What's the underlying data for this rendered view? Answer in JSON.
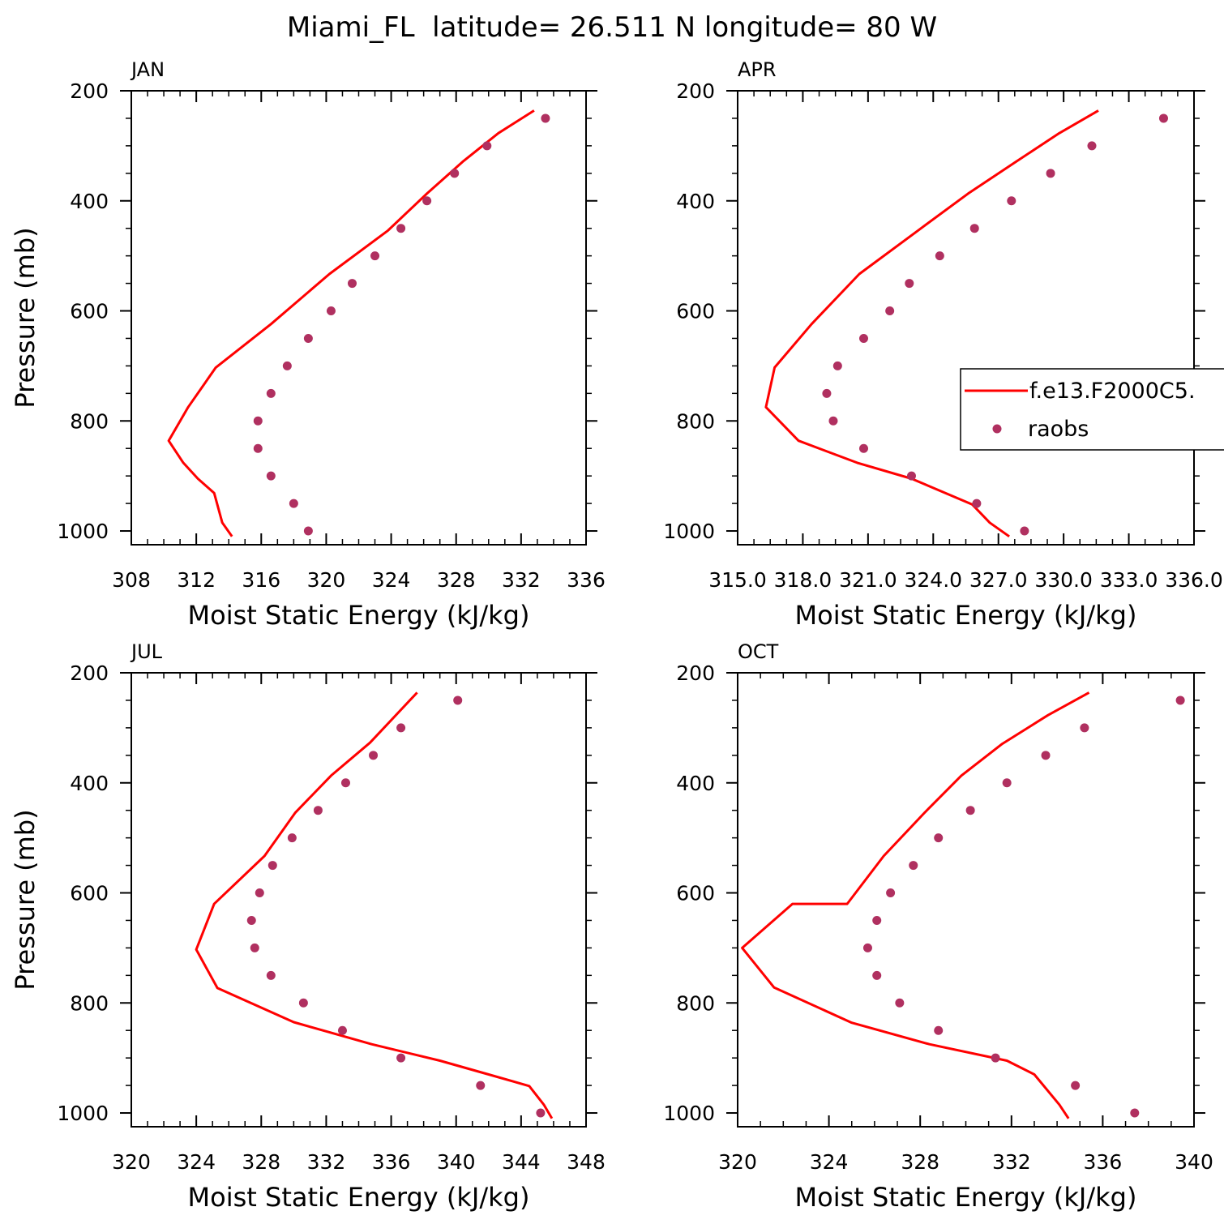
{
  "title": "Miami_FL  latitude= 26.511 N longitude= 80 W",
  "colors": {
    "model": "#ff0000",
    "obs": "#b03060"
  },
  "legend": {
    "model": "f.e13.F2000C5.",
    "obs": "raobs",
    "placement": "right side of APR panel"
  },
  "chart_data": [
    {
      "type": "line",
      "panel_label": "JAN",
      "xlabel": "Moist Static Energy (kJ/kg)",
      "ylabel": "Pressure (mb)",
      "xlim": [
        308,
        336
      ],
      "ylim": [
        1025,
        200
      ],
      "xticks": [
        "308",
        "312",
        "316",
        "320",
        "324",
        "328",
        "332",
        "336"
      ],
      "yticks": [
        "200",
        "400",
        "600",
        "800",
        "1000"
      ],
      "model": {
        "x": [
          332.8,
          330.6,
          328.4,
          326.2,
          323.8,
          320.2,
          316.6,
          313.2,
          311.5,
          310.3,
          311.2,
          312.1,
          313.1,
          313.6,
          314.2
        ],
        "p": [
          236,
          277,
          329,
          387,
          454,
          533,
          624,
          703,
          775,
          836,
          876,
          905,
          931,
          985,
          1010
        ]
      },
      "obs": {
        "x": [
          333.5,
          329.9,
          327.9,
          326.2,
          324.6,
          323.0,
          321.6,
          320.3,
          318.9,
          317.6,
          316.6,
          315.8,
          315.8,
          316.6,
          318.0,
          318.9
        ],
        "p": [
          250,
          300,
          350,
          400,
          450,
          500,
          550,
          600,
          650,
          700,
          750,
          800,
          850,
          900,
          950,
          1000
        ]
      }
    },
    {
      "type": "line",
      "panel_label": "APR",
      "xlabel": "Moist Static Energy (kJ/kg)",
      "ylabel": "",
      "xlim": [
        315,
        336
      ],
      "ylim": [
        1025,
        200
      ],
      "xticks": [
        "315.0",
        "318.0",
        "321.0",
        "324.0",
        "327.0",
        "330.0",
        "333.0",
        "336.0"
      ],
      "yticks": [
        "200",
        "400",
        "600",
        "800",
        "1000"
      ],
      "model": {
        "x": [
          331.6,
          329.8,
          327.8,
          325.6,
          323.3,
          320.6,
          318.4,
          316.7,
          316.3,
          317.8,
          320.5,
          323.0,
          325.8,
          326.6,
          327.5
        ],
        "p": [
          236,
          277,
          329,
          387,
          454,
          533,
          624,
          703,
          775,
          836,
          876,
          905,
          952,
          985,
          1010
        ]
      },
      "obs": {
        "x": [
          334.6,
          331.3,
          329.4,
          327.6,
          325.9,
          324.3,
          322.9,
          322.0,
          320.8,
          319.6,
          319.1,
          319.4,
          320.8,
          323.0,
          326.0,
          328.2
        ],
        "p": [
          250,
          300,
          350,
          400,
          450,
          500,
          550,
          600,
          650,
          700,
          750,
          800,
          850,
          900,
          950,
          1000
        ]
      }
    },
    {
      "type": "line",
      "panel_label": "JUL",
      "xlabel": "Moist Static Energy (kJ/kg)",
      "ylabel": "Pressure (mb)",
      "xlim": [
        320,
        348
      ],
      "ylim": [
        1025,
        200
      ],
      "xticks": [
        "320",
        "324",
        "328",
        "332",
        "336",
        "340",
        "344",
        "348"
      ],
      "yticks": [
        "200",
        "400",
        "600",
        "800",
        "1000"
      ],
      "model": {
        "x": [
          337.6,
          334.7,
          332.3,
          330.1,
          328.2,
          325.1,
          324.0,
          325.3,
          330.0,
          334.8,
          339.0,
          342.0,
          344.5,
          345.4,
          345.9
        ],
        "p": [
          236,
          327,
          387,
          454,
          533,
          620,
          703,
          773,
          835,
          875,
          905,
          930,
          951,
          985,
          1010
        ]
      },
      "obs": {
        "x": [
          340.1,
          336.6,
          334.9,
          333.2,
          331.5,
          329.9,
          328.7,
          327.9,
          327.4,
          327.6,
          328.6,
          330.6,
          333.0,
          336.6,
          341.5,
          345.2
        ],
        "p": [
          250,
          300,
          350,
          400,
          450,
          500,
          550,
          600,
          650,
          700,
          750,
          800,
          850,
          900,
          950,
          1000
        ]
      }
    },
    {
      "type": "line",
      "panel_label": "OCT",
      "xlabel": "Moist Static Energy (kJ/kg)",
      "ylabel": "",
      "xlim": [
        320,
        340
      ],
      "ylim": [
        1025,
        200
      ],
      "xticks": [
        "320",
        "324",
        "328",
        "332",
        "336",
        "340"
      ],
      "yticks": [
        "200",
        "400",
        "600",
        "800",
        "1000"
      ],
      "model": {
        "x": [
          335.4,
          333.6,
          331.6,
          329.8,
          328.2,
          326.4,
          324.8,
          322.4,
          320.2,
          321.6,
          325.0,
          328.4,
          331.8,
          333.0,
          334.1,
          334.5
        ],
        "p": [
          236,
          277,
          329,
          387,
          454,
          533,
          620,
          620,
          700,
          772,
          836,
          875,
          905,
          930,
          985,
          1010
        ]
      },
      "obs": {
        "x": [
          339.4,
          335.2,
          333.5,
          331.8,
          330.2,
          328.8,
          327.7,
          326.7,
          326.1,
          325.7,
          326.1,
          327.1,
          328.8,
          331.3,
          334.8,
          337.4
        ],
        "p": [
          250,
          300,
          350,
          400,
          450,
          500,
          550,
          600,
          650,
          700,
          750,
          800,
          850,
          900,
          950,
          1000
        ]
      }
    }
  ]
}
